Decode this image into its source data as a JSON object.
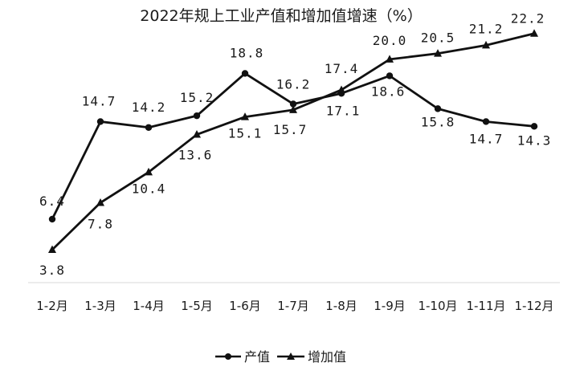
{
  "chart_data": {
    "type": "line",
    "title": "2022年规上工业产值和增加值增速（%）",
    "categories": [
      "1-2月",
      "1-3月",
      "1-4月",
      "1-5月",
      "1-6月",
      "1-7月",
      "1-8月",
      "1-9月",
      "1-10月",
      "1-11月",
      "1-12月"
    ],
    "series": [
      {
        "name": "产值",
        "marker": "circle",
        "values": [
          6.4,
          14.7,
          14.2,
          15.2,
          18.8,
          16.2,
          17.1,
          18.6,
          15.8,
          14.7,
          14.3
        ]
      },
      {
        "name": "增加值",
        "marker": "triangle",
        "values": [
          3.8,
          7.8,
          10.4,
          13.6,
          15.1,
          15.7,
          17.4,
          20.0,
          20.5,
          21.2,
          22.2
        ]
      }
    ],
    "data_labels": {
      "产值": [
        "6.4",
        "14.7",
        "14.2",
        "15.2",
        "18.8",
        "16.2",
        "17.1",
        "18.6",
        "15.8",
        "14.7",
        "14.3"
      ],
      "增加值": [
        "3.8",
        "7.8",
        "10.4",
        "13.6",
        "15.1",
        "15.7",
        "17.4",
        "20.0",
        "20.5",
        "21.2",
        "22.2"
      ]
    },
    "xlabel": "",
    "ylabel": "",
    "ylim": [
      2.5,
      23
    ],
    "grid": false,
    "legend_position": "bottom",
    "line_color": "#111111"
  }
}
